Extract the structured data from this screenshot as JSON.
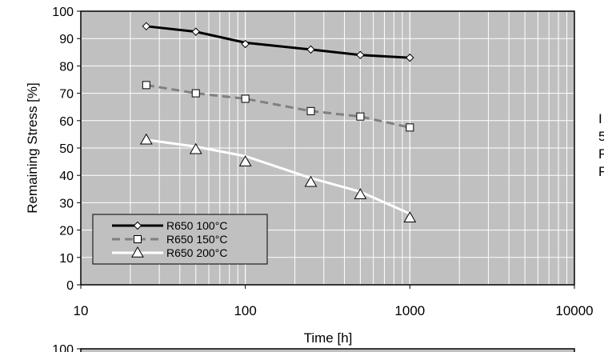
{
  "chart_data": [
    {
      "type": "line",
      "xscale": "log",
      "xlim": [
        10,
        10000
      ],
      "ylim": [
        0,
        100
      ],
      "xticks": [
        10,
        100,
        1000,
        10000
      ],
      "yticks": [
        0,
        10,
        20,
        30,
        40,
        50,
        60,
        70,
        80,
        90,
        100
      ],
      "xlabel": "Time [h]",
      "ylabel": "Remaining Stress [%]",
      "grid": true,
      "background": "#c0c0c0",
      "legend_position": "bottom-left",
      "series": [
        {
          "name": "R650 100°C",
          "marker": "diamond",
          "color": "#000000",
          "linestyle": "solid",
          "x": [
            25,
            50,
            100,
            250,
            500,
            1000
          ],
          "y": [
            94.5,
            92.5,
            88,
            86,
            84,
            83
          ],
          "line_y": [
            94.5,
            92.5,
            88.5,
            86,
            84,
            83
          ]
        },
        {
          "name": "R650 150°C",
          "marker": "square",
          "color": "#808080",
          "linestyle": "dashed",
          "x": [
            25,
            50,
            100,
            250,
            500,
            1000
          ],
          "y": [
            73,
            70,
            68,
            63.5,
            61.5,
            57.5
          ],
          "line_y": [
            73,
            70,
            68,
            63.5,
            61.5,
            57.5
          ]
        },
        {
          "name": "R650 200°C",
          "marker": "triangle",
          "color": "#ffffff",
          "linestyle": "solid",
          "x": [
            25,
            50,
            100,
            250,
            500,
            1000
          ],
          "y": [
            53,
            49.5,
            45,
            37.5,
            33,
            24.5
          ],
          "line_y": [
            53,
            50.5,
            47,
            39,
            34,
            26
          ]
        }
      ]
    },
    {
      "type": "line",
      "yticks": [
        100
      ],
      "note": "second chart cropped at bottom edge"
    }
  ],
  "side_text": [
    "I",
    "5",
    "F",
    "F"
  ]
}
